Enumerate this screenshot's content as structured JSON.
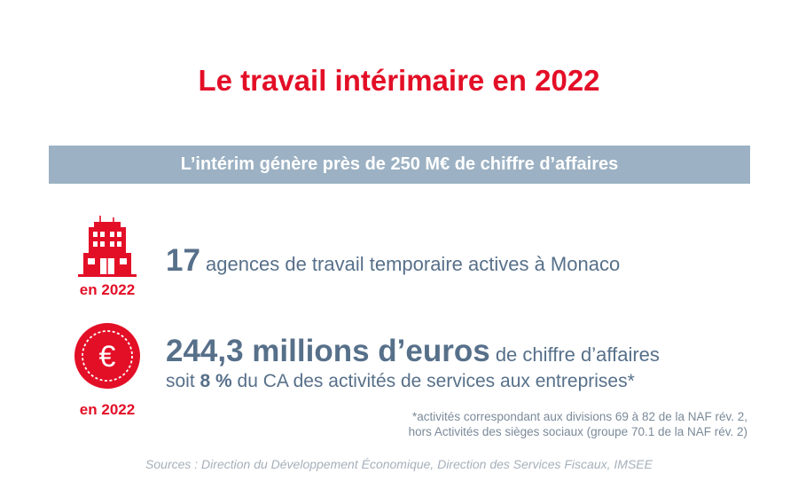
{
  "title": "Le travail intérimaire en 2022",
  "banner": "L’intérim génère près de 250 M€ de chiffre d’affaires",
  "colors": {
    "accent": "#e30f27",
    "banner": "#9cb1c3",
    "text": "#57708a"
  },
  "stat_agencies": {
    "icon": "building-icon",
    "year_label": "en 2022",
    "value": "17",
    "text": " agences de travail temporaire actives à Monaco"
  },
  "stat_revenue": {
    "icon": "euro-coin-icon",
    "year_label": "en 2022",
    "value": "244,3 millions d’euros",
    "text": " de chiffre d’affaires",
    "line2_prefix": "soit ",
    "line2_value": "8 %",
    "line2_suffix": " du CA des activités de services aux entreprises*"
  },
  "footnote": {
    "line1": "*activités correspondant aux divisions 69 à 82 de la NAF rév. 2,",
    "line2": "hors Activités des sièges sociaux (groupe 70.1 de la NAF rév. 2)"
  },
  "sources": "Sources : Direction du Développement Économique, Direction des Services Fiscaux, IMSEE"
}
